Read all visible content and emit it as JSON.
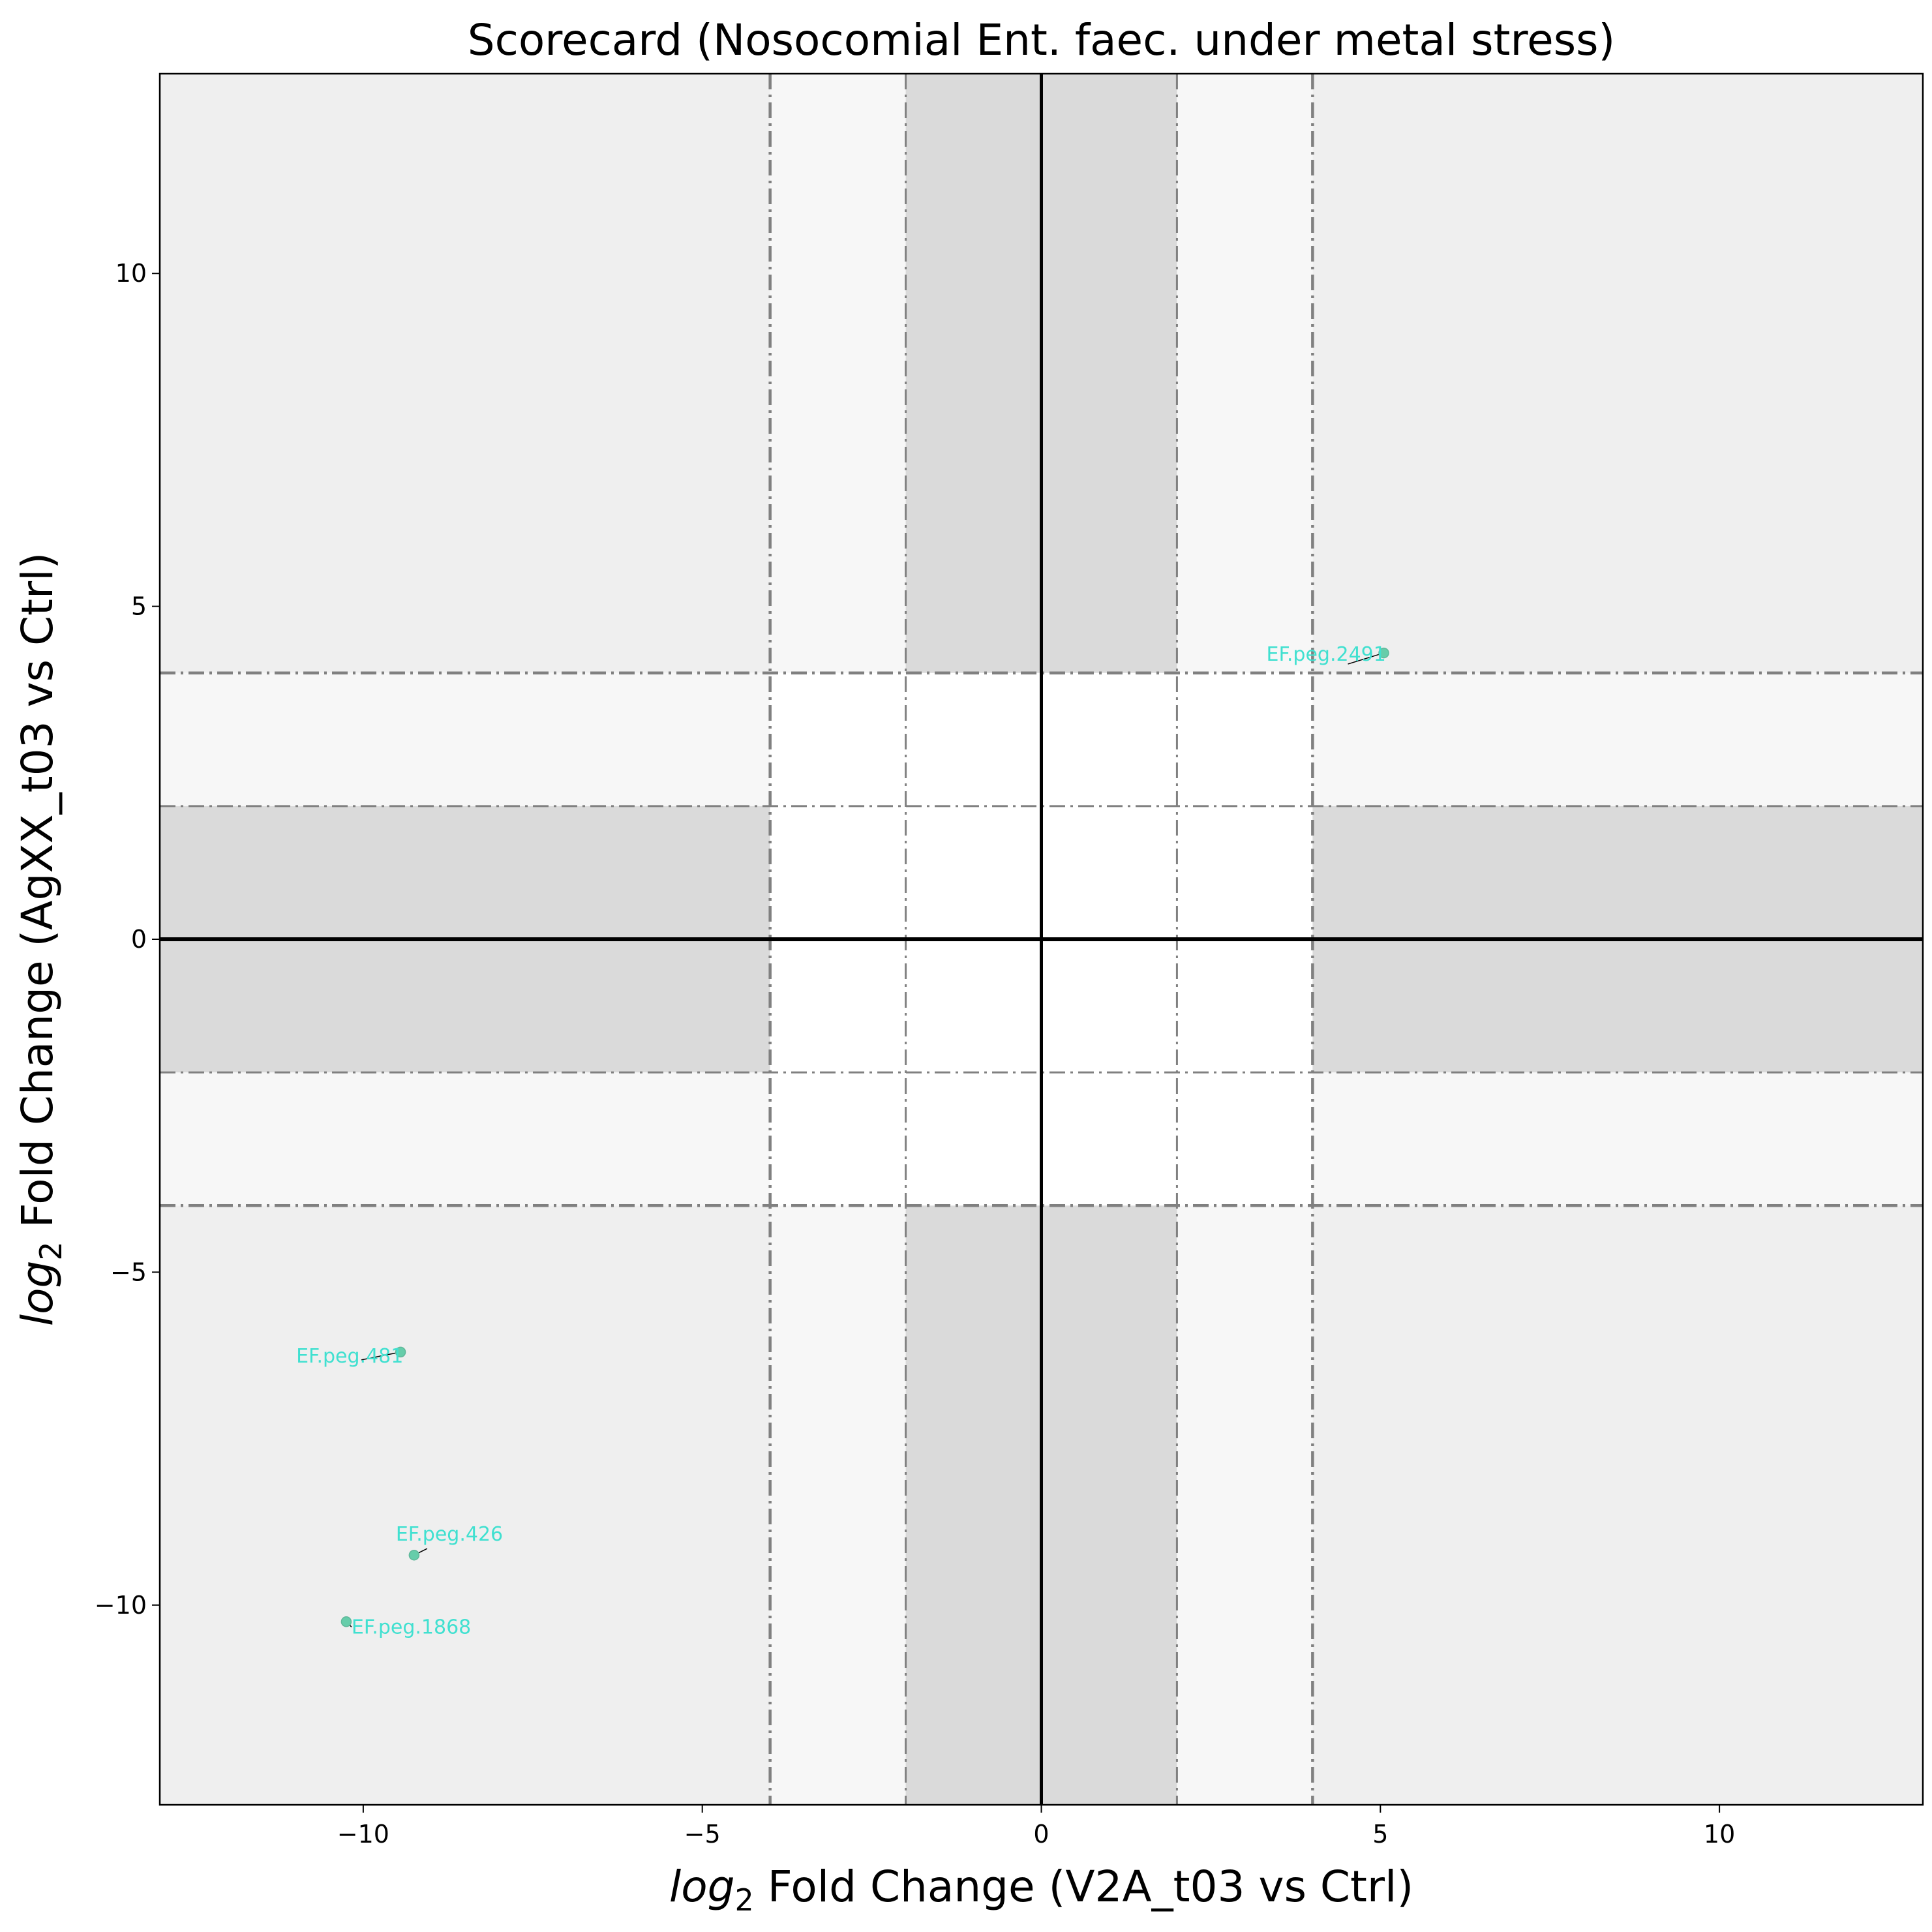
{
  "chart_data": {
    "type": "scatter",
    "title": "Scorecard (Nosocomial Ent. faec. under metal stress)",
    "xlabel": {
      "prefix": "log",
      "sub": "2",
      "rest": " Fold Change (V2A_t03 vs Ctrl)"
    },
    "ylabel": {
      "prefix": "log",
      "sub": "2",
      "rest": " Fold Change (AgXX_t03 vs Ctrl)"
    },
    "xlim": [
      -13,
      13
    ],
    "ylim": [
      -13,
      13
    ],
    "xticks": [
      -10,
      -5,
      0,
      5,
      10
    ],
    "yticks": [
      -10,
      -5,
      0,
      5,
      10
    ],
    "xtick_labels": [
      "−10",
      "−5",
      "0",
      "5",
      "10"
    ],
    "ytick_labels": [
      "−10",
      "−5",
      "0",
      "5",
      "10"
    ],
    "thresholds": {
      "inner": 2,
      "outer": 4
    },
    "grid": false,
    "colors": {
      "point": "#66cdaa",
      "label": "#40e0d0",
      "band_dark": "#dadada",
      "band_light": "#f7f7f7",
      "corner": "#efefef",
      "line": "#808080"
    },
    "points": [
      {
        "name": "EF.peg.2491",
        "x": 5.05,
        "y": 4.3
      },
      {
        "name": "EF.peg.481",
        "x": -9.45,
        "y": -6.2
      },
      {
        "name": "EF.peg.426",
        "x": -9.25,
        "y": -9.25
      },
      {
        "name": "EF.peg.1868",
        "x": -10.25,
        "y": -10.25
      }
    ]
  }
}
